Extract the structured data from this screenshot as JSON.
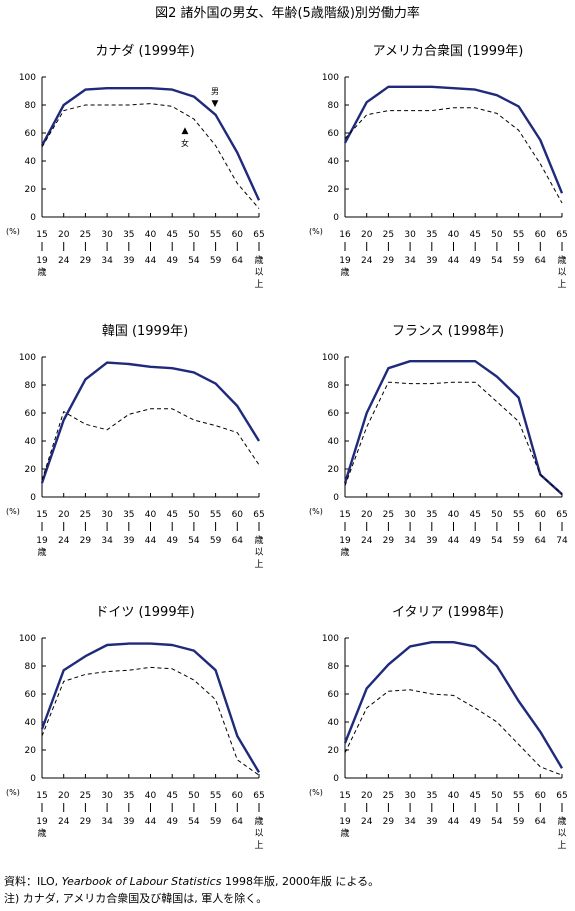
{
  "figure_title": "図2 諸外国の男女、年齢(5歳階級)別労働力率",
  "footer": {
    "source_prefix": "資料：ILO,",
    "source_italic": "Yearbook of Labour Statistics",
    "source_suffix": "1998年版, 2000年版 による。",
    "note": "注) カナダ, アメリカ合衆国及び韓国は, 軍人を除く。"
  },
  "chart_data": [
    {
      "type": "line",
      "title": "カナダ (1999年)",
      "ylabel": "(%)",
      "ylim": [
        0,
        100
      ],
      "yticks": [
        0,
        20,
        40,
        60,
        80,
        100
      ],
      "age_groups": [
        {
          "top": "15",
          "bottom": [
            "19",
            "歳"
          ]
        },
        {
          "top": "20",
          "bottom": [
            "24"
          ]
        },
        {
          "top": "25",
          "bottom": [
            "29"
          ]
        },
        {
          "top": "30",
          "bottom": [
            "34"
          ]
        },
        {
          "top": "35",
          "bottom": [
            "39"
          ]
        },
        {
          "top": "40",
          "bottom": [
            "44"
          ]
        },
        {
          "top": "45",
          "bottom": [
            "49"
          ]
        },
        {
          "top": "50",
          "bottom": [
            "54"
          ]
        },
        {
          "top": "55",
          "bottom": [
            "59"
          ]
        },
        {
          "top": "60",
          "bottom": [
            "64"
          ]
        },
        {
          "top": "65",
          "bottom": [
            "歳",
            "以",
            "上"
          ]
        }
      ],
      "series": [
        {
          "name": "男",
          "style": "solid",
          "values": [
            51,
            80,
            91,
            92,
            92,
            92,
            91,
            86,
            73,
            46,
            12
          ]
        },
        {
          "name": "女",
          "style": "dashed",
          "values": [
            50,
            76,
            80,
            80,
            80,
            81,
            79,
            70,
            51,
            24,
            6
          ]
        }
      ],
      "annotations": [
        {
          "text": "男",
          "marker": "▼"
        },
        {
          "text": "女",
          "marker": "▲"
        }
      ]
    },
    {
      "type": "line",
      "title": "アメリカ合衆国 (1999年)",
      "ylabel": "(%)",
      "ylim": [
        0,
        100
      ],
      "yticks": [
        0,
        20,
        40,
        60,
        80,
        100
      ],
      "age_groups": [
        {
          "top": "16",
          "bottom": [
            "19",
            "歳"
          ]
        },
        {
          "top": "20",
          "bottom": [
            "24"
          ]
        },
        {
          "top": "25",
          "bottom": [
            "29"
          ]
        },
        {
          "top": "30",
          "bottom": [
            "34"
          ]
        },
        {
          "top": "35",
          "bottom": [
            "39"
          ]
        },
        {
          "top": "40",
          "bottom": [
            "44"
          ]
        },
        {
          "top": "45",
          "bottom": [
            "49"
          ]
        },
        {
          "top": "50",
          "bottom": [
            "54"
          ]
        },
        {
          "top": "55",
          "bottom": [
            "59"
          ]
        },
        {
          "top": "60",
          "bottom": [
            "64"
          ]
        },
        {
          "top": "65",
          "bottom": [
            "歳",
            "以",
            "上"
          ]
        }
      ],
      "series": [
        {
          "name": "男",
          "style": "solid",
          "values": [
            53,
            82,
            93,
            93,
            93,
            92,
            91,
            87,
            79,
            55,
            17
          ]
        },
        {
          "name": "女",
          "style": "dashed",
          "values": [
            56,
            73,
            76,
            76,
            76,
            78,
            78,
            74,
            62,
            38,
            10
          ]
        }
      ]
    },
    {
      "type": "line",
      "title": "韓国 (1999年)",
      "ylabel": "(%)",
      "ylim": [
        0,
        100
      ],
      "yticks": [
        0,
        20,
        40,
        60,
        80,
        100
      ],
      "age_groups": [
        {
          "top": "15",
          "bottom": [
            "19",
            "歳"
          ]
        },
        {
          "top": "20",
          "bottom": [
            "24"
          ]
        },
        {
          "top": "25",
          "bottom": [
            "29"
          ]
        },
        {
          "top": "30",
          "bottom": [
            "34"
          ]
        },
        {
          "top": "35",
          "bottom": [
            "39"
          ]
        },
        {
          "top": "40",
          "bottom": [
            "44"
          ]
        },
        {
          "top": "45",
          "bottom": [
            "49"
          ]
        },
        {
          "top": "50",
          "bottom": [
            "54"
          ]
        },
        {
          "top": "55",
          "bottom": [
            "59"
          ]
        },
        {
          "top": "60",
          "bottom": [
            "64"
          ]
        },
        {
          "top": "65",
          "bottom": [
            "歳",
            "以",
            "上"
          ]
        }
      ],
      "series": [
        {
          "name": "男",
          "style": "solid",
          "values": [
            10,
            55,
            84,
            96,
            95,
            93,
            92,
            89,
            81,
            65,
            40
          ]
        },
        {
          "name": "女",
          "style": "dashed",
          "values": [
            12,
            61,
            52,
            48,
            59,
            63,
            63,
            55,
            51,
            46,
            23
          ]
        }
      ]
    },
    {
      "type": "line",
      "title": "フランス (1998年)",
      "ylabel": "(%)",
      "ylim": [
        0,
        100
      ],
      "yticks": [
        0,
        20,
        40,
        60,
        80,
        100
      ],
      "age_groups": [
        {
          "top": "15",
          "bottom": [
            "19",
            "歳"
          ]
        },
        {
          "top": "20",
          "bottom": [
            "24"
          ]
        },
        {
          "top": "25",
          "bottom": [
            "29"
          ]
        },
        {
          "top": "30",
          "bottom": [
            "34"
          ]
        },
        {
          "top": "35",
          "bottom": [
            "39"
          ]
        },
        {
          "top": "40",
          "bottom": [
            "44"
          ]
        },
        {
          "top": "45",
          "bottom": [
            "49"
          ]
        },
        {
          "top": "50",
          "bottom": [
            "54"
          ]
        },
        {
          "top": "55",
          "bottom": [
            "59"
          ]
        },
        {
          "top": "60",
          "bottom": [
            "64"
          ]
        },
        {
          "top": "65",
          "bottom": [
            "74"
          ]
        }
      ],
      "series": [
        {
          "name": "男",
          "style": "solid",
          "values": [
            10,
            60,
            92,
            97,
            97,
            97,
            97,
            86,
            71,
            16,
            2
          ]
        },
        {
          "name": "女",
          "style": "dashed",
          "values": [
            8,
            50,
            82,
            81,
            81,
            82,
            82,
            68,
            54,
            16,
            2
          ]
        }
      ]
    },
    {
      "type": "line",
      "title": "ドイツ (1999年)",
      "ylabel": "(%)",
      "ylim": [
        0,
        100
      ],
      "yticks": [
        0,
        20,
        40,
        60,
        80,
        100
      ],
      "age_groups": [
        {
          "top": "15",
          "bottom": [
            "19",
            "歳"
          ]
        },
        {
          "top": "20",
          "bottom": [
            "24"
          ]
        },
        {
          "top": "25",
          "bottom": [
            "29"
          ]
        },
        {
          "top": "30",
          "bottom": [
            "34"
          ]
        },
        {
          "top": "35",
          "bottom": [
            "39"
          ]
        },
        {
          "top": "40",
          "bottom": [
            "44"
          ]
        },
        {
          "top": "45",
          "bottom": [
            "49"
          ]
        },
        {
          "top": "50",
          "bottom": [
            "54"
          ]
        },
        {
          "top": "55",
          "bottom": [
            "59"
          ]
        },
        {
          "top": "60",
          "bottom": [
            "64"
          ]
        },
        {
          "top": "65",
          "bottom": [
            "歳",
            "以",
            "上"
          ]
        }
      ],
      "series": [
        {
          "name": "男",
          "style": "solid",
          "values": [
            35,
            77,
            87,
            95,
            96,
            96,
            95,
            91,
            77,
            30,
            4
          ]
        },
        {
          "name": "女",
          "style": "dashed",
          "values": [
            30,
            69,
            74,
            76,
            77,
            79,
            78,
            70,
            56,
            13,
            2
          ]
        }
      ]
    },
    {
      "type": "line",
      "title": "イタリア (1998年)",
      "ylabel": "(%)",
      "ylim": [
        0,
        100
      ],
      "yticks": [
        0,
        20,
        40,
        60,
        80,
        100
      ],
      "age_groups": [
        {
          "top": "15",
          "bottom": [
            "19",
            "歳"
          ]
        },
        {
          "top": "20",
          "bottom": [
            "24"
          ]
        },
        {
          "top": "25",
          "bottom": [
            "29"
          ]
        },
        {
          "top": "30",
          "bottom": [
            "34"
          ]
        },
        {
          "top": "35",
          "bottom": [
            "39"
          ]
        },
        {
          "top": "40",
          "bottom": [
            "44"
          ]
        },
        {
          "top": "45",
          "bottom": [
            "49"
          ]
        },
        {
          "top": "50",
          "bottom": [
            "54"
          ]
        },
        {
          "top": "55",
          "bottom": [
            "59"
          ]
        },
        {
          "top": "60",
          "bottom": [
            "64"
          ]
        },
        {
          "top": "65",
          "bottom": [
            "歳",
            "以",
            "上"
          ]
        }
      ],
      "series": [
        {
          "name": "男",
          "style": "solid",
          "values": [
            25,
            64,
            81,
            94,
            97,
            97,
            94,
            80,
            55,
            33,
            7
          ]
        },
        {
          "name": "女",
          "style": "dashed",
          "values": [
            18,
            50,
            62,
            63,
            60,
            59,
            50,
            40,
            24,
            8,
            2
          ]
        }
      ]
    }
  ]
}
